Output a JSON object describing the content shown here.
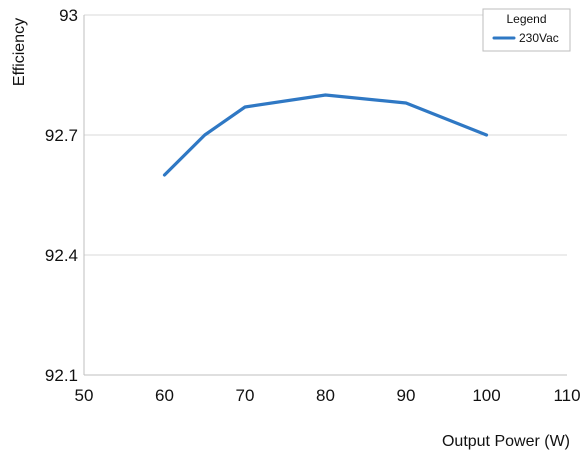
{
  "chart_data": {
    "type": "line",
    "xlabel": "Output Power (W)",
    "ylabel": "Efficiency",
    "xlim": [
      50,
      110
    ],
    "ylim": [
      92.1,
      93
    ],
    "xticks": [
      "50",
      "60",
      "70",
      "80",
      "90",
      "100",
      "110"
    ],
    "yticks": [
      "93",
      "92.7",
      "92.4",
      "92.1"
    ],
    "grid": "horizontal",
    "legend": {
      "title": "Legend",
      "placement": "top-right"
    },
    "series": [
      {
        "name": "230Vac",
        "color": "#2f78c4",
        "x": [
          60,
          65,
          70,
          80,
          90,
          100
        ],
        "y": [
          92.6,
          92.7,
          92.77,
          92.8,
          92.78,
          92.7
        ]
      }
    ]
  }
}
